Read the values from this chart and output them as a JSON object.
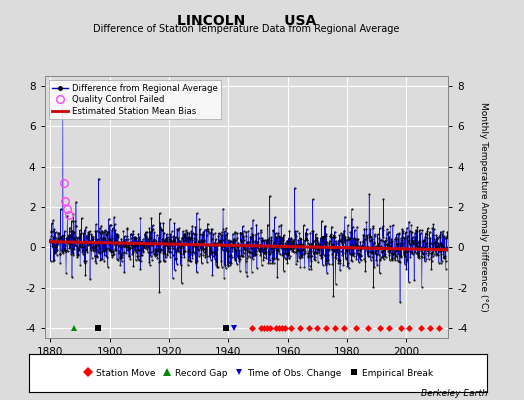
{
  "title": "LINCOLN        USA",
  "subtitle": "Difference of Station Temperature Data from Regional Average",
  "ylabel": "Monthly Temperature Anomaly Difference (°C)",
  "xlabel_years": [
    1880,
    1900,
    1920,
    1940,
    1960,
    1980,
    2000
  ],
  "ylim": [
    -4.5,
    8.5
  ],
  "xlim": [
    1878,
    2014
  ],
  "yticks": [
    -4,
    -2,
    0,
    2,
    4,
    6,
    8
  ],
  "bg_color": "#dcdcdc",
  "plot_bg_color": "#dcdcdc",
  "grid_color": "#ffffff",
  "line_color": "#0000cc",
  "qc_color": "#ff44ff",
  "bias_color": "#cc0000",
  "watermark": "Berkeley Earth",
  "station_moves": [
    1948,
    1951,
    1952,
    1953,
    1954,
    1956,
    1957,
    1958,
    1959,
    1961,
    1964,
    1967,
    1970,
    1973,
    1976,
    1979,
    1983,
    1987,
    1991,
    1994,
    1998,
    2001,
    2005,
    2008,
    2011
  ],
  "record_gaps": [
    1888
  ],
  "obs_changes": [
    1942
  ],
  "emp_breaks": [
    1896,
    1939
  ],
  "qc_years": [
    1884.5,
    1885.0,
    1885.7,
    1886.2
  ],
  "qc_vals": [
    3.2,
    2.3,
    1.9,
    1.6
  ],
  "spike_year": 1884.2,
  "spike_val": 7.2
}
